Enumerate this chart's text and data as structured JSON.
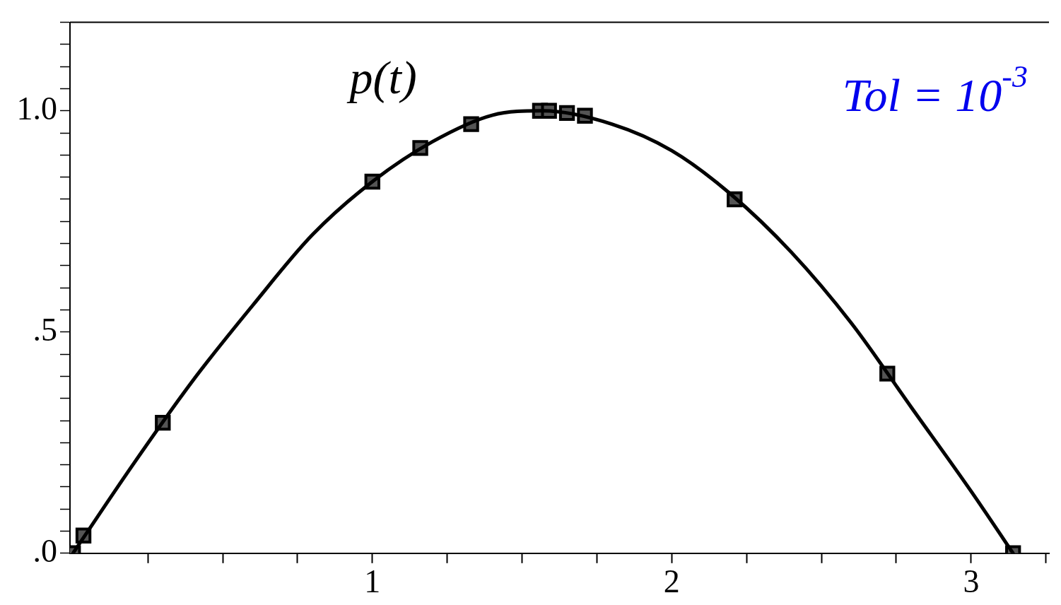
{
  "chart_data": {
    "type": "line",
    "annotations": [
      "p(t)",
      "Tol = 10$^{-3}$"
    ],
    "xlim": [
      -0.01,
      3.26
    ],
    "ylim": [
      0,
      1.2
    ],
    "xticks": [
      {
        "value": 0.25,
        "label": null
      },
      {
        "value": 0.5,
        "label": null
      },
      {
        "value": 0.75,
        "label": null
      },
      1,
      {
        "value": 1.25,
        "label": null
      },
      {
        "value": 1.5,
        "label": null
      },
      {
        "value": 1.75,
        "label": null
      },
      2,
      {
        "value": 2.25,
        "label": null
      },
      {
        "value": 2.5,
        "label": null
      },
      {
        "value": 2.75,
        "label": null
      },
      3,
      {
        "value": 3.25,
        "label": null
      }
    ],
    "yticks": [
      {
        "value": 0,
        "label": ".0"
      },
      {
        "value": 0.05,
        "label": null
      },
      {
        "value": 0.1,
        "label": null
      },
      {
        "value": 0.15,
        "label": null
      },
      {
        "value": 0.2,
        "label": null
      },
      {
        "value": 0.25,
        "label": null
      },
      {
        "value": 0.3,
        "label": null
      },
      {
        "value": 0.35,
        "label": null
      },
      {
        "value": 0.4,
        "label": null
      },
      {
        "value": 0.45,
        "label": null
      },
      {
        "value": 0.5,
        "label": ".5"
      },
      {
        "value": 0.55,
        "label": null
      },
      {
        "value": 0.6,
        "label": null
      },
      {
        "value": 0.65,
        "label": null
      },
      {
        "value": 0.7,
        "label": null
      },
      {
        "value": 0.75,
        "label": null
      },
      {
        "value": 0.8,
        "label": null
      },
      {
        "value": 0.85,
        "label": null
      },
      {
        "value": 0.9,
        "label": null
      },
      {
        "value": 0.95,
        "label": null
      },
      {
        "value": 1,
        "label": "1.0"
      },
      {
        "value": 1.05,
        "label": null
      },
      {
        "value": 1.1,
        "label": null
      },
      {
        "value": 1.15,
        "label": null
      },
      {
        "value": 1.2,
        "label": null
      }
    ],
    "grid": false,
    "legend": false,
    "series": [
      {
        "type": "line",
        "color": "#000000",
        "marker": "none",
        "line_style": "solid",
        "x": [
          0,
          0.2,
          0.4,
          0.6,
          0.8,
          1.0,
          1.2,
          1.4,
          1.57,
          1.8,
          2.0,
          2.2,
          2.4,
          2.6,
          2.8,
          3.0,
          3.14
        ],
        "values": [
          0,
          0.2,
          0.39,
          0.56,
          0.72,
          0.84,
          0.93,
          0.99,
          1.0,
          0.97,
          0.91,
          0.81,
          0.68,
          0.52,
          0.33,
          0.14,
          0
        ]
      },
      {
        "type": "scatter",
        "color": "#555555",
        "marker": "square",
        "x": [
          0,
          0.035,
          0.3,
          1.0,
          1.16,
          1.33,
          1.56,
          1.59,
          1.65,
          1.71,
          2.21,
          2.72,
          3.14
        ],
        "values": [
          0,
          0.04,
          0.295,
          0.84,
          0.916,
          0.97,
          1.0,
          1.0,
          0.995,
          0.989,
          0.8,
          0.406,
          0
        ]
      }
    ]
  }
}
